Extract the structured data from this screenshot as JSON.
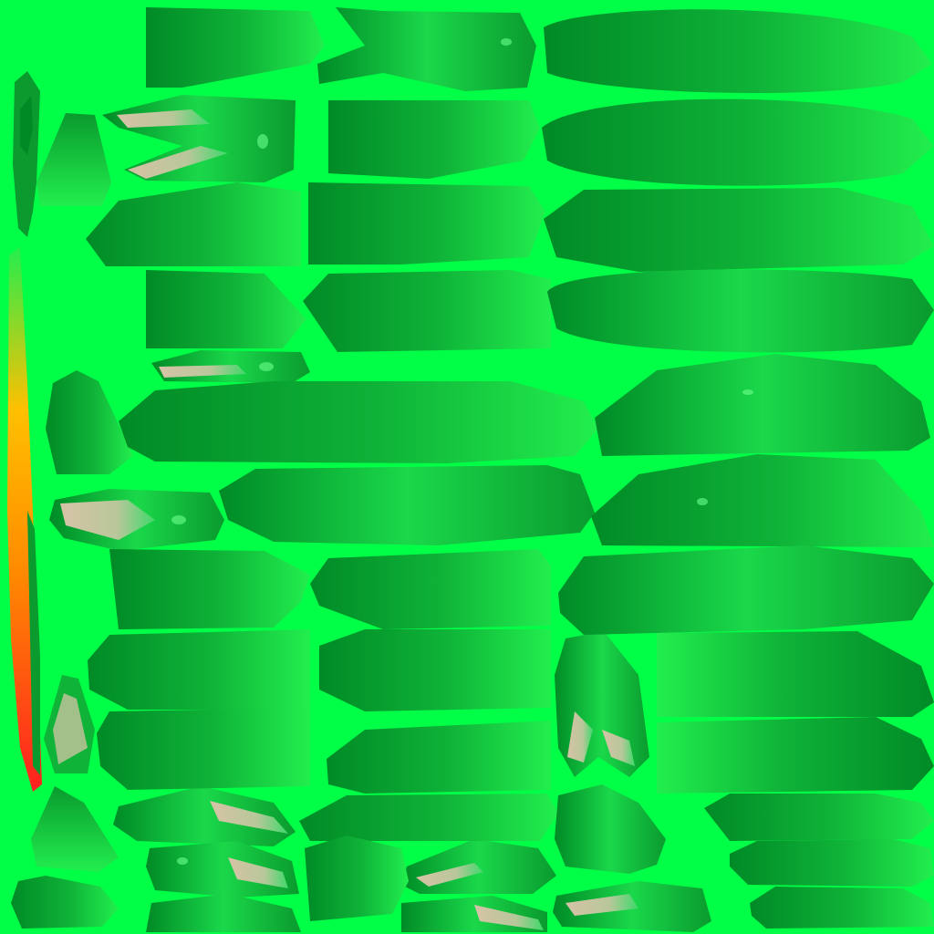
{
  "texture": {
    "colors": {
      "background": "#00ff46",
      "leaf_dark": "#008a26",
      "leaf_mid": "#0fb338",
      "leaf_light": "#22ee4e",
      "highlight": "#6cff8e",
      "vein": "#d6c3a6",
      "stem_red": "#ff2020",
      "stem_orange": "#ff8a00",
      "stem_yellow": "#ffc000"
    }
  }
}
